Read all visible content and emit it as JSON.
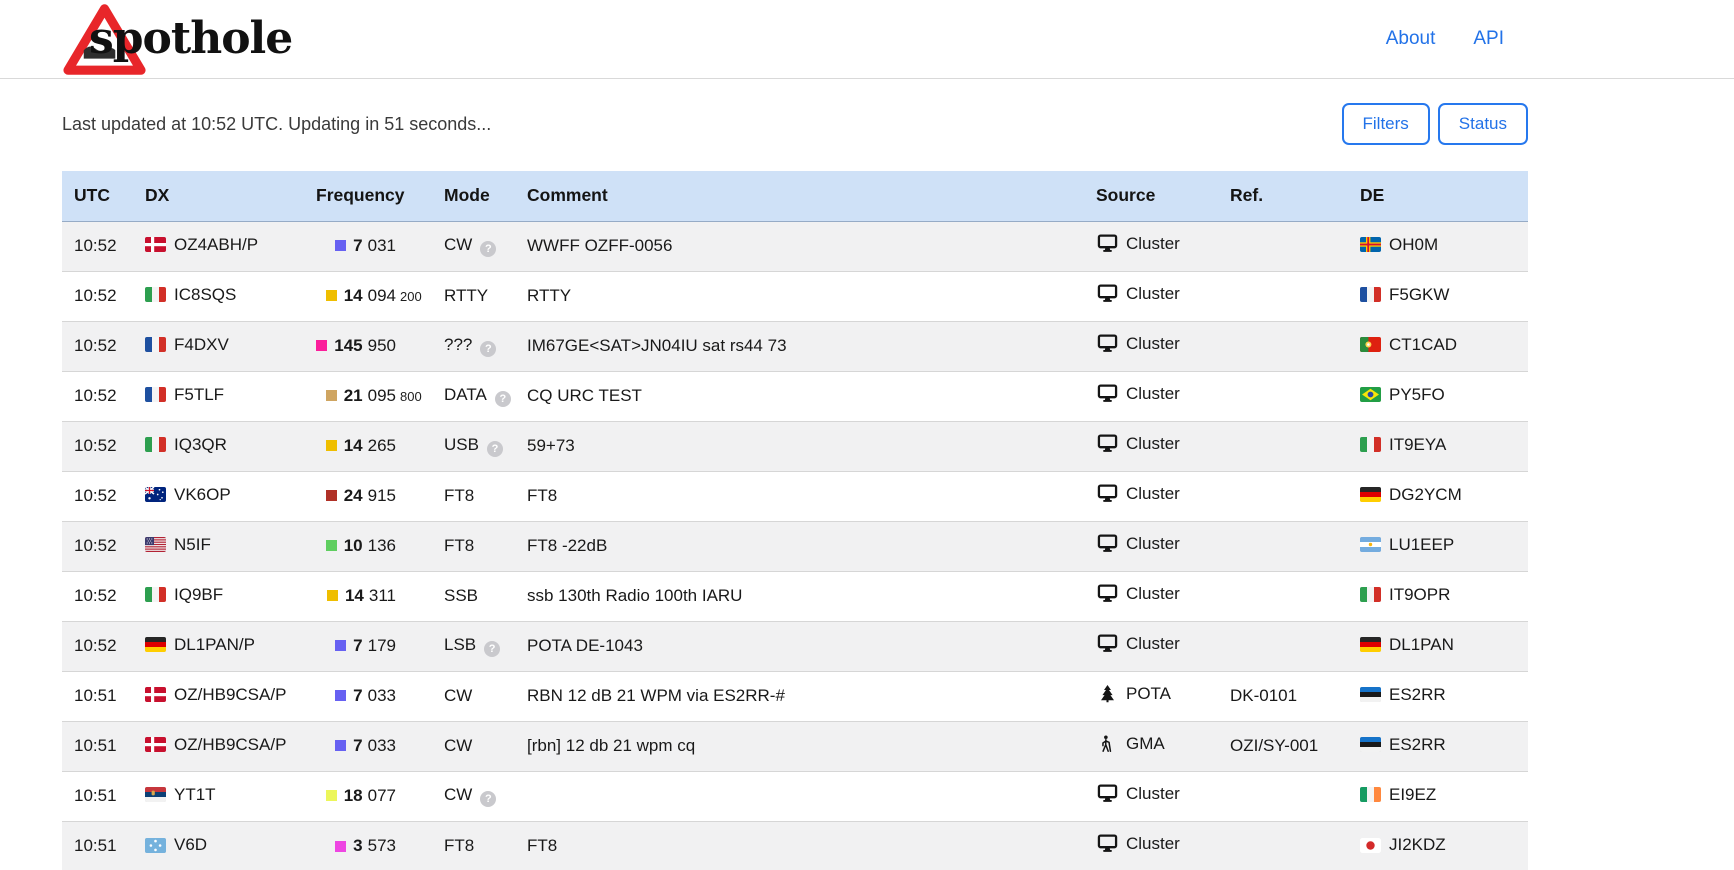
{
  "page_title": "spothole",
  "brand": {
    "name": "spothole"
  },
  "nav": [
    {
      "label": "About"
    },
    {
      "label": "API"
    }
  ],
  "status_line": "Last updated at 10:52 UTC. Updating in 51 seconds...",
  "buttons": [
    {
      "label": "Filters"
    },
    {
      "label": "Status"
    }
  ],
  "colors": {
    "link_blue": "#2272e8",
    "header_bg": "#cfe1f7",
    "zebra_bg": "#f1f1f2",
    "sign_red": "#e8262a"
  },
  "table": {
    "columns": [
      "UTC",
      "DX",
      "Frequency",
      "Mode",
      "Comment",
      "Source",
      "Ref.",
      "DE"
    ],
    "rows": [
      {
        "utc": "10:52",
        "dx": {
          "country": "dk",
          "call": "OZ4ABH/P"
        },
        "freq": {
          "color": "#6761f2",
          "mhz": "7",
          "khz": "031",
          "sub": ""
        },
        "mode": {
          "label": "CW",
          "help": true
        },
        "comment": "WWFF OZFF-0056",
        "source": {
          "icon": "monitor",
          "label": "Cluster"
        },
        "ref": "",
        "de": {
          "country": "ax",
          "call": "OH0M"
        }
      },
      {
        "utc": "10:52",
        "dx": {
          "country": "it",
          "call": "IC8SQS"
        },
        "freq": {
          "color": "#efbe00",
          "mhz": "14",
          "khz": "094",
          "sub": "200"
        },
        "mode": {
          "label": "RTTY",
          "help": false
        },
        "comment": "RTTY",
        "source": {
          "icon": "monitor",
          "label": "Cluster"
        },
        "ref": "",
        "de": {
          "country": "fr",
          "call": "F5GKW"
        }
      },
      {
        "utc": "10:52",
        "dx": {
          "country": "fr",
          "call": "F4DXV"
        },
        "freq": {
          "color": "#fb1e9b",
          "mhz": "145",
          "khz": "950",
          "sub": ""
        },
        "mode": {
          "label": "???",
          "help": true
        },
        "comment": "IM67GE<SAT>JN04IU sat rs44 73",
        "source": {
          "icon": "monitor",
          "label": "Cluster"
        },
        "ref": "",
        "de": {
          "country": "pt",
          "call": "CT1CAD"
        }
      },
      {
        "utc": "10:52",
        "dx": {
          "country": "fr",
          "call": "F5TLF"
        },
        "freq": {
          "color": "#cfa561",
          "mhz": "21",
          "khz": "095",
          "sub": "800"
        },
        "mode": {
          "label": "DATA",
          "help": true
        },
        "comment": "CQ URC TEST",
        "source": {
          "icon": "monitor",
          "label": "Cluster"
        },
        "ref": "",
        "de": {
          "country": "br",
          "call": "PY5FO"
        }
      },
      {
        "utc": "10:52",
        "dx": {
          "country": "it",
          "call": "IQ3QR"
        },
        "freq": {
          "color": "#efbe00",
          "mhz": "14",
          "khz": "265",
          "sub": ""
        },
        "mode": {
          "label": "USB",
          "help": true
        },
        "comment": "59+73",
        "source": {
          "icon": "monitor",
          "label": "Cluster"
        },
        "ref": "",
        "de": {
          "country": "it",
          "call": "IT9EYA"
        }
      },
      {
        "utc": "10:52",
        "dx": {
          "country": "au",
          "call": "VK6OP"
        },
        "freq": {
          "color": "#b03127",
          "mhz": "24",
          "khz": "915",
          "sub": ""
        },
        "mode": {
          "label": "FT8",
          "help": false
        },
        "comment": "FT8",
        "source": {
          "icon": "monitor",
          "label": "Cluster"
        },
        "ref": "",
        "de": {
          "country": "de",
          "call": "DG2YCM"
        }
      },
      {
        "utc": "10:52",
        "dx": {
          "country": "us",
          "call": "N5IF"
        },
        "freq": {
          "color": "#5fce60",
          "mhz": "10",
          "khz": "136",
          "sub": ""
        },
        "mode": {
          "label": "FT8",
          "help": false
        },
        "comment": "FT8 -22dB",
        "source": {
          "icon": "monitor",
          "label": "Cluster"
        },
        "ref": "",
        "de": {
          "country": "ar",
          "call": "LU1EEP"
        }
      },
      {
        "utc": "10:52",
        "dx": {
          "country": "it",
          "call": "IQ9BF"
        },
        "freq": {
          "color": "#efbe00",
          "mhz": "14",
          "khz": "311",
          "sub": ""
        },
        "mode": {
          "label": "SSB",
          "help": false
        },
        "comment": "ssb 130th Radio 100th IARU",
        "source": {
          "icon": "monitor",
          "label": "Cluster"
        },
        "ref": "",
        "de": {
          "country": "it",
          "call": "IT9OPR"
        }
      },
      {
        "utc": "10:52",
        "dx": {
          "country": "de",
          "call": "DL1PAN/P"
        },
        "freq": {
          "color": "#6761f2",
          "mhz": "7",
          "khz": "179",
          "sub": ""
        },
        "mode": {
          "label": "LSB",
          "help": true
        },
        "comment": "POTA DE-1043",
        "source": {
          "icon": "monitor",
          "label": "Cluster"
        },
        "ref": "",
        "de": {
          "country": "de",
          "call": "DL1PAN"
        }
      },
      {
        "utc": "10:51",
        "dx": {
          "country": "dk",
          "call": "OZ/HB9CSA/P"
        },
        "freq": {
          "color": "#6761f2",
          "mhz": "7",
          "khz": "033",
          "sub": ""
        },
        "mode": {
          "label": "CW",
          "help": false
        },
        "comment": "RBN 12 dB 21 WPM via ES2RR-#",
        "source": {
          "icon": "tree",
          "label": "POTA"
        },
        "ref": "DK-0101",
        "de": {
          "country": "ee",
          "call": "ES2RR"
        }
      },
      {
        "utc": "10:51",
        "dx": {
          "country": "dk",
          "call": "OZ/HB9CSA/P"
        },
        "freq": {
          "color": "#6761f2",
          "mhz": "7",
          "khz": "033",
          "sub": ""
        },
        "mode": {
          "label": "CW",
          "help": false
        },
        "comment": "[rbn] 12 db 21 wpm cq",
        "source": {
          "icon": "hiker",
          "label": "GMA"
        },
        "ref": "OZI/SY-001",
        "de": {
          "country": "ee",
          "call": "ES2RR"
        }
      },
      {
        "utc": "10:51",
        "dx": {
          "country": "rs",
          "call": "YT1T"
        },
        "freq": {
          "color": "#ecf65a",
          "mhz": "18",
          "khz": "077",
          "sub": ""
        },
        "mode": {
          "label": "CW",
          "help": true
        },
        "comment": "",
        "source": {
          "icon": "monitor",
          "label": "Cluster"
        },
        "ref": "",
        "de": {
          "country": "ie",
          "call": "EI9EZ"
        }
      },
      {
        "utc": "10:51",
        "dx": {
          "country": "fm",
          "call": "V6D"
        },
        "freq": {
          "color": "#ee46e2",
          "mhz": "3",
          "khz": "573",
          "sub": ""
        },
        "mode": {
          "label": "FT8",
          "help": false
        },
        "comment": "FT8",
        "source": {
          "icon": "monitor",
          "label": "Cluster"
        },
        "ref": "",
        "de": {
          "country": "jp",
          "call": "JI2KDZ"
        }
      }
    ]
  }
}
